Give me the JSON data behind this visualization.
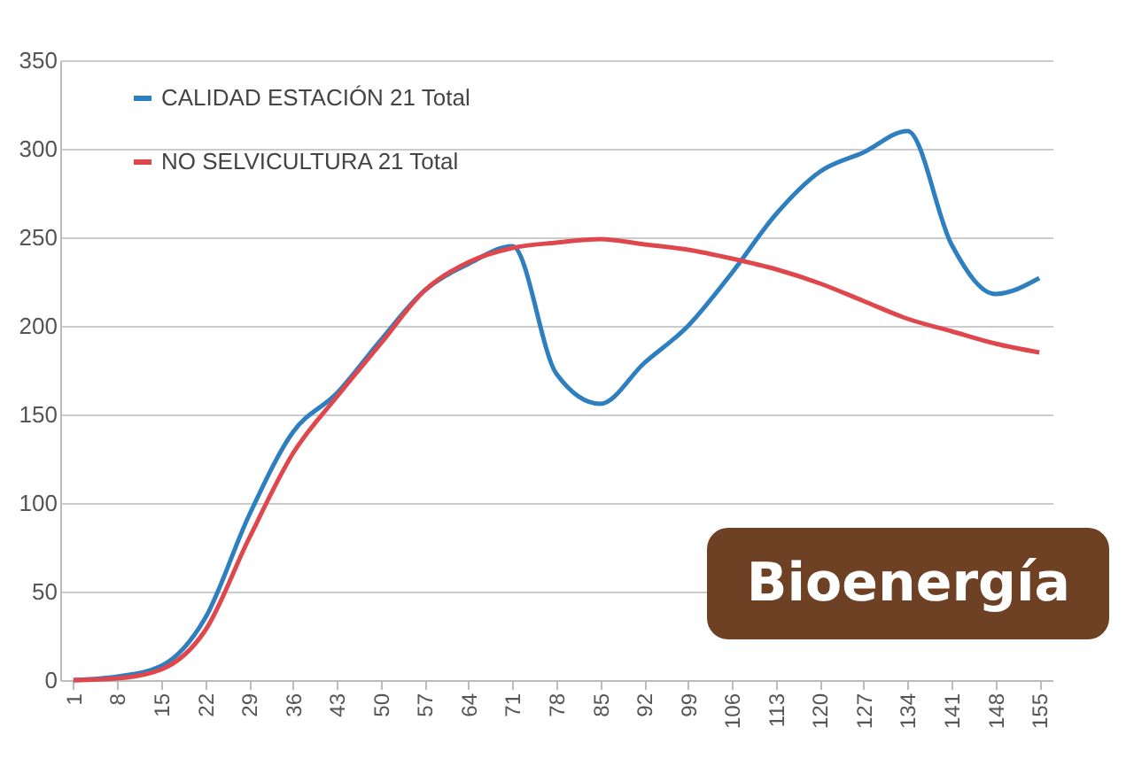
{
  "chart_data": {
    "type": "line",
    "categories": [
      "1",
      "8",
      "15",
      "22",
      "29",
      "36",
      "43",
      "50",
      "57",
      "64",
      "71",
      "78",
      "85",
      "92",
      "99",
      "106",
      "113",
      "120",
      "127",
      "134",
      "141",
      "148",
      "155"
    ],
    "series": [
      {
        "name": "CALIDAD ESTACIÓN 21 Total",
        "color": "#2e7fc0",
        "values": [
          0,
          2,
          8,
          35,
          93,
          140,
          162,
          192,
          220,
          235,
          245,
          173,
          156,
          179,
          200,
          230,
          263,
          287,
          298,
          310,
          246,
          218,
          227
        ]
      },
      {
        "name": "NO SELVICULTURA 21 Total",
        "color": "#e0474c",
        "values": [
          0,
          1,
          6,
          28,
          80,
          128,
          160,
          190,
          220,
          236,
          244,
          247,
          249,
          246,
          243,
          238,
          232,
          224,
          214,
          204,
          197,
          190,
          185
        ]
      }
    ],
    "ylim": [
      0,
      350
    ],
    "yticks": [
      0,
      50,
      100,
      150,
      200,
      250,
      300,
      350
    ],
    "grid": "y",
    "legend": "top left",
    "annotations": [
      "Bioenergía"
    ]
  }
}
